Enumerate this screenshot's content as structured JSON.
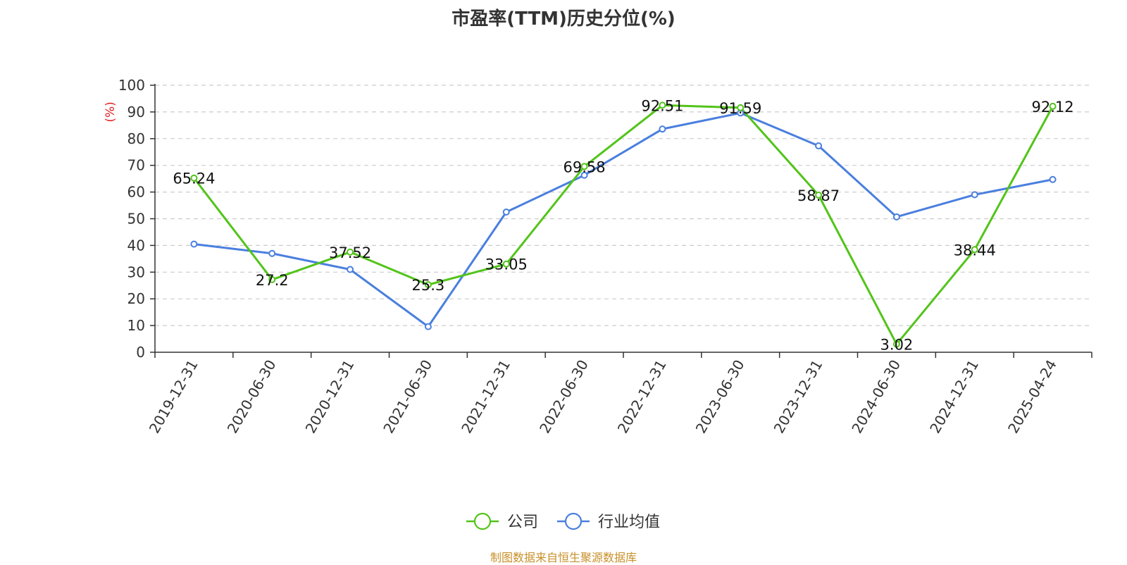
{
  "chart_data": {
    "type": "line",
    "title": "市盈率(TTM)历史分位(%)",
    "ylabel": "(%)",
    "xlabel": "",
    "categories": [
      "2019-12-31",
      "2020-06-30",
      "2020-12-31",
      "2021-06-30",
      "2021-12-31",
      "2022-06-30",
      "2022-12-31",
      "2023-06-30",
      "2023-12-31",
      "2024-06-30",
      "2024-12-31",
      "2025-04-24"
    ],
    "ylim": [
      0,
      100
    ],
    "yticks": [
      0,
      10,
      20,
      30,
      40,
      50,
      60,
      70,
      80,
      90,
      100
    ],
    "grid": true,
    "legend_position": "bottom",
    "series": [
      {
        "name": "公司",
        "color": "#52c41a",
        "values": [
          65.24,
          27.2,
          37.52,
          25.3,
          33.05,
          69.58,
          92.51,
          91.59,
          58.87,
          3.02,
          38.44,
          92.12
        ],
        "labels": [
          "65.24",
          "27.2",
          "37.52",
          "25.3",
          "33.05",
          "69.58",
          "92.51",
          "91.59",
          "58.87",
          "3.02",
          "38.44",
          "92.12"
        ]
      },
      {
        "name": "行业均值",
        "color": "#4a7fde",
        "values": [
          40.5,
          37.0,
          31.0,
          9.6,
          52.5,
          66.3,
          83.6,
          89.6,
          77.3,
          50.7,
          59.0,
          64.7
        ]
      }
    ]
  },
  "source": "制图数据来自恒生聚源数据库",
  "colors": {
    "axis": "#333333",
    "grid": "#cccccc",
    "ylabel": "#e02020"
  }
}
